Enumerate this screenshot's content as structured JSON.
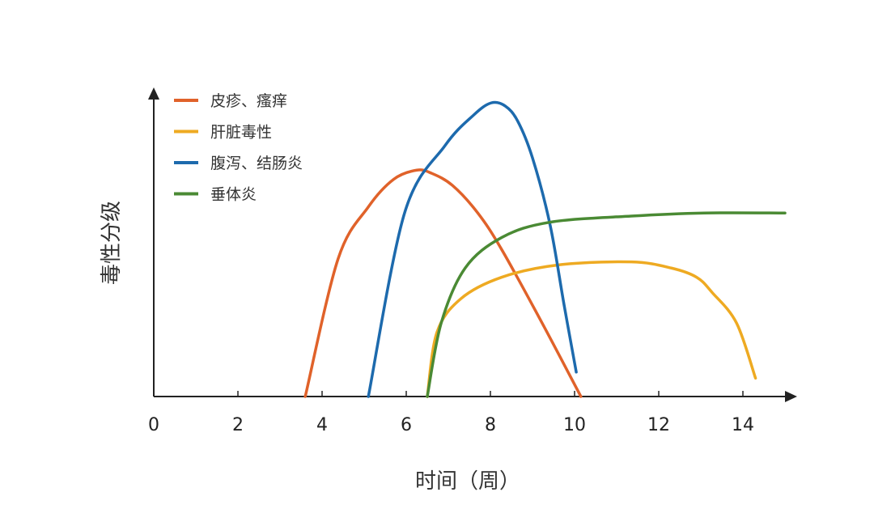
{
  "chart_data": {
    "type": "line",
    "xlabel": "时间（周）",
    "ylabel": "毒性分级",
    "xlim": [
      0,
      15.2
    ],
    "ylim": [
      0,
      100
    ],
    "xticks": [
      "0",
      "2",
      "4",
      "6",
      "8",
      "10",
      "12",
      "14"
    ],
    "grid": false,
    "legend_position": "top-left",
    "series": [
      {
        "name": "皮疹、瘙痒",
        "color": "#e0622a",
        "points": [
          [
            3.6,
            0
          ],
          [
            4.38,
            45
          ],
          [
            5.1,
            62
          ],
          [
            5.7,
            71
          ],
          [
            6.25,
            74
          ],
          [
            6.6,
            73
          ],
          [
            7.1,
            69
          ],
          [
            7.7,
            60
          ],
          [
            8.27,
            48
          ],
          [
            9.23,
            24
          ],
          [
            10.15,
            0
          ]
        ]
      },
      {
        "name": "肝脏毒性",
        "color": "#eeaa22",
        "points": [
          [
            6.5,
            0
          ],
          [
            6.73,
            21
          ],
          [
            7.3,
            32
          ],
          [
            8.27,
            39
          ],
          [
            9.6,
            43
          ],
          [
            11.35,
            44
          ],
          [
            12.3,
            42
          ],
          [
            12.9,
            39
          ],
          [
            13.27,
            34
          ],
          [
            13.85,
            24
          ],
          [
            14.3,
            6
          ]
        ]
      },
      {
        "name": "腹泻、结肠炎",
        "color": "#1d6aad",
        "points": [
          [
            5.1,
            0
          ],
          [
            5.96,
            60
          ],
          [
            6.92,
            82
          ],
          [
            7.6,
            92
          ],
          [
            8.02,
            96
          ],
          [
            8.35,
            95
          ],
          [
            8.65,
            90
          ],
          [
            9.0,
            78
          ],
          [
            9.42,
            56
          ],
          [
            9.75,
            30
          ],
          [
            10.04,
            8
          ]
        ]
      },
      {
        "name": "垂体炎",
        "color": "#4a8a34",
        "points": [
          [
            6.5,
            0
          ],
          [
            6.83,
            24
          ],
          [
            7.4,
            42
          ],
          [
            8.27,
            52
          ],
          [
            9.42,
            57
          ],
          [
            11.35,
            59
          ],
          [
            13.08,
            60
          ],
          [
            15,
            60
          ]
        ]
      }
    ]
  }
}
